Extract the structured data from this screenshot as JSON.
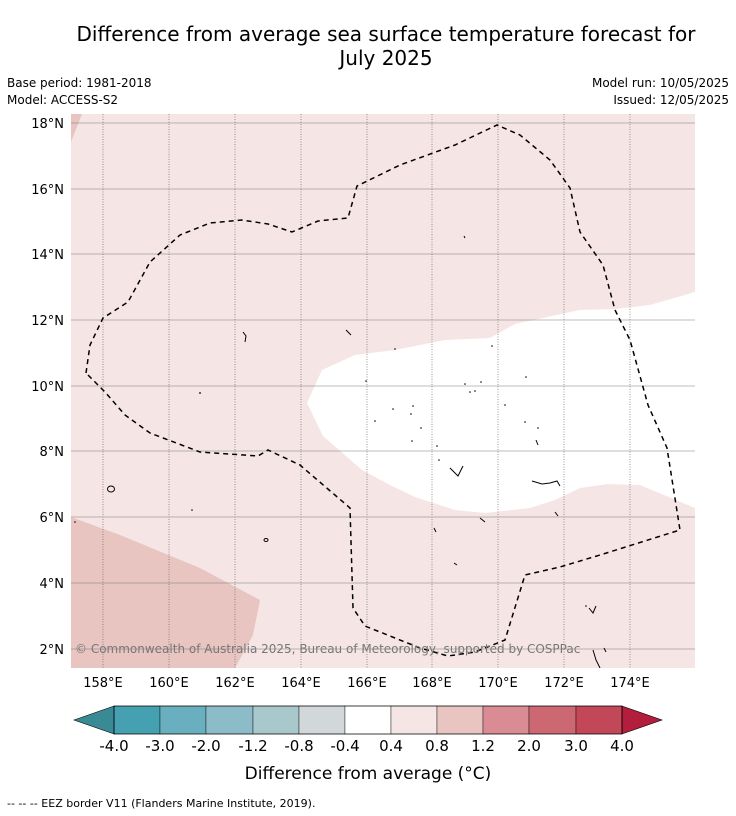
{
  "title_line1": "Difference from average sea surface temperature forecast for",
  "title_line2": "July 2025",
  "meta_left": {
    "base_period": "Base period: 1981-2018",
    "model": "Model: ACCESS-S2"
  },
  "meta_right": {
    "model_run": "Model run: 10/05/2025",
    "issued": "Issued: 12/05/2025"
  },
  "map": {
    "lat_ticks": [
      "18°N",
      "16°N",
      "14°N",
      "12°N",
      "10°N",
      "8°N",
      "6°N",
      "4°N",
      "2°N"
    ],
    "lon_ticks": [
      "158°E",
      "160°E",
      "162°E",
      "164°E",
      "166°E",
      "168°E",
      "170°E",
      "172°E",
      "174°E"
    ],
    "copyright": "© Commonwealth of Australia 2025, Bureau of Meteorology, supported by COSPPac"
  },
  "colorbar": {
    "labels": [
      "-4.0",
      "-3.0",
      "-2.0",
      "-1.2",
      "-0.8",
      "-0.4",
      "0.4",
      "0.8",
      "1.2",
      "2.0",
      "3.0",
      "4.0"
    ],
    "colors": [
      "#45a0b2",
      "#6aafbf",
      "#8cbcc7",
      "#a8c8cc",
      "#d2d8da",
      "#ffffff",
      "#f5e6e5",
      "#e8c5c1",
      "#d98c94",
      "#cc6872",
      "#c24758"
    ],
    "under_color": "#3a8a96",
    "over_color": "#b31e3c",
    "title": "Difference from average ($^\\circ$C)",
    "title_display": "Difference from average (°C)"
  },
  "footnote": "--  --  -- EEZ border V11 (Flanders Marine Institute, 2019)."
}
